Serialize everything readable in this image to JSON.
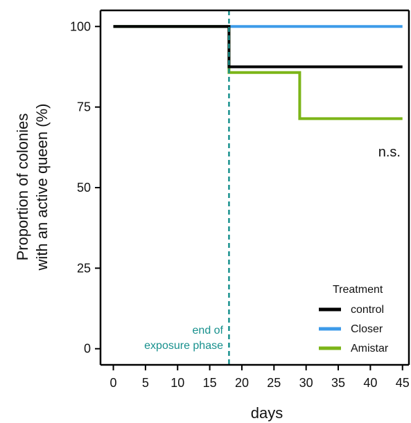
{
  "chart_data": {
    "type": "line",
    "step": true,
    "xlabel": "days",
    "ylabel_lines": [
      "Proportion of colonies",
      "with an active queen (%)"
    ],
    "xlim": [
      -2,
      46
    ],
    "ylim": [
      -5,
      105
    ],
    "xticks": [
      0,
      5,
      10,
      15,
      20,
      25,
      30,
      35,
      40,
      45
    ],
    "yticks": [
      0,
      25,
      50,
      75,
      100
    ],
    "series": [
      {
        "name": "control",
        "color": "#000000",
        "x": [
          0,
          18,
          18,
          45
        ],
        "y": [
          100,
          100,
          87.5,
          87.5
        ]
      },
      {
        "name": "Closer",
        "color": "#3d9be9",
        "x": [
          0,
          45
        ],
        "y": [
          100,
          100
        ]
      },
      {
        "name": "Amistar",
        "color": "#7cb518",
        "x": [
          0,
          18,
          18,
          29,
          29,
          45
        ],
        "y": [
          100,
          100,
          85.7,
          85.7,
          71.4,
          71.4
        ]
      }
    ],
    "legend": {
      "title": "Treatment",
      "position": "bottom-right"
    },
    "vline": {
      "x": 18,
      "color": "#17908d",
      "style": "dashed",
      "label_lines": [
        "end of",
        "exposure phase"
      ]
    },
    "annotation": "n.s."
  }
}
